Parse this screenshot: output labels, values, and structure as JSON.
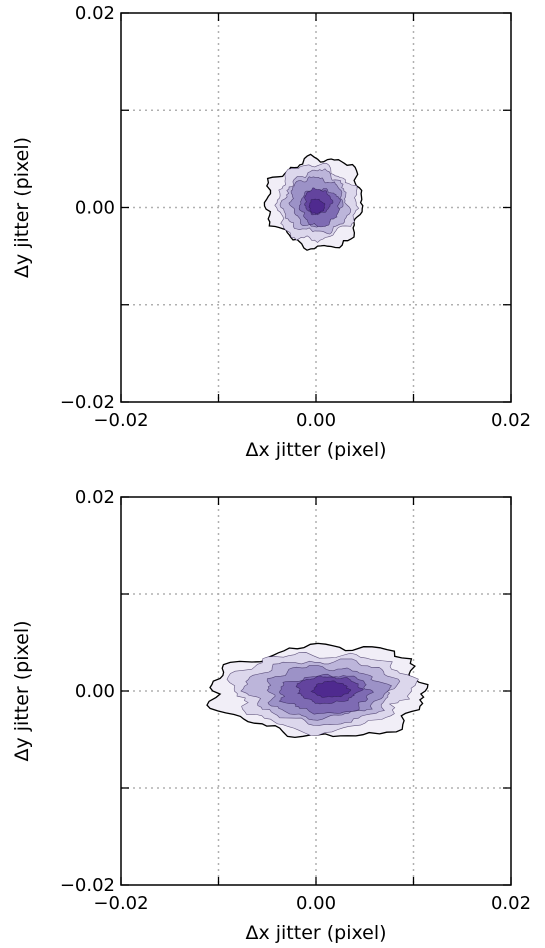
{
  "chart_data": [
    {
      "type": "contour",
      "title": "",
      "xlabel": "Δx jitter (pixel)",
      "ylabel": "Δy jitter (pixel)",
      "xlim": [
        -0.02,
        0.02
      ],
      "ylim": [
        -0.02,
        0.02
      ],
      "xticks": [
        -0.02,
        0.0,
        0.02
      ],
      "xtick_labels": [
        "−0.02",
        "0.00",
        "0.02"
      ],
      "yticks": [
        -0.02,
        0.0,
        0.02
      ],
      "ytick_labels": [
        "−0.02",
        "0.00",
        "0.02"
      ],
      "grid": true,
      "grid_values": [
        -0.01,
        0.0,
        0.01
      ],
      "colormap": [
        "#f1eef7",
        "#dcd7ec",
        "#bcb5da",
        "#9c92c7",
        "#7e6bb3",
        "#63449e",
        "#4f2a8f"
      ],
      "outer_contour_color": "#000000",
      "distribution": {
        "center_x": 0.0,
        "center_y": 0.0005,
        "spread_x": 0.0049,
        "spread_y": 0.0046
      },
      "levels": [
        {
          "level": 1,
          "scale": 1.0
        },
        {
          "level": 2,
          "scale": 0.83
        },
        {
          "level": 3,
          "scale": 0.68
        },
        {
          "level": 4,
          "scale": 0.54
        },
        {
          "level": 5,
          "scale": 0.41
        },
        {
          "level": 6,
          "scale": 0.28
        },
        {
          "level": 7,
          "scale": 0.16
        }
      ]
    },
    {
      "type": "contour",
      "title": "",
      "xlabel": "Δx jitter (pixel)",
      "ylabel": "Δy jitter (pixel)",
      "xlim": [
        -0.02,
        0.02
      ],
      "ylim": [
        -0.02,
        0.02
      ],
      "xticks": [
        -0.02,
        0.0,
        0.02
      ],
      "xtick_labels": [
        "−0.02",
        "0.00",
        "0.02"
      ],
      "yticks": [
        -0.02,
        0.0,
        0.02
      ],
      "ytick_labels": [
        "−0.02",
        "0.00",
        "0.02"
      ],
      "grid": true,
      "grid_values": [
        -0.01,
        0.0,
        0.01
      ],
      "colormap": [
        "#f1eef7",
        "#dcd7ec",
        "#bcb5da",
        "#9c92c7",
        "#7e6bb3",
        "#63449e",
        "#4f2a8f"
      ],
      "outer_contour_color": "#000000",
      "distribution": {
        "center_x": 0.0006,
        "center_y": 0.0,
        "spread_x": 0.0109,
        "spread_y": 0.0047
      },
      "levels": [
        {
          "level": 1,
          "scale": 1.0
        },
        {
          "level": 2,
          "scale": 0.84
        },
        {
          "level": 3,
          "scale": 0.69
        },
        {
          "level": 4,
          "scale": 0.55
        },
        {
          "level": 5,
          "scale": 0.42
        },
        {
          "level": 6,
          "scale": 0.29
        },
        {
          "level": 7,
          "scale": 0.17
        }
      ]
    }
  ]
}
